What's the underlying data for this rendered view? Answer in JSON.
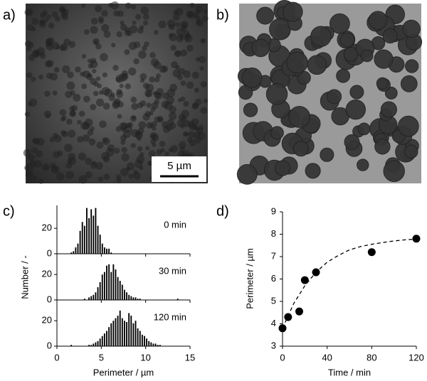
{
  "panel_labels": [
    "a)",
    "b)",
    "c)",
    "d)"
  ],
  "scale_bar": "5 µm",
  "chart_data": [
    {
      "type": "histogram",
      "annotation": "0 min",
      "color": "#000000",
      "bins": [
        1,
        1.25,
        1.5,
        1.75,
        2,
        2.25,
        2.5,
        2.75,
        3,
        3.25,
        3.5,
        3.75,
        4,
        4.25,
        4.5,
        4.75,
        5,
        5.25,
        5.5,
        5.75,
        6,
        6.25,
        6.5,
        6.75,
        7,
        7.25,
        7.5,
        7.75,
        8,
        8.25,
        8.5,
        8.75,
        9,
        9.25,
        9.5,
        9.75,
        10,
        10.25,
        10.5,
        10.75,
        11,
        11.25,
        11.5,
        11.75,
        12,
        12.25,
        12.5,
        12.75,
        13,
        13.25,
        13.5,
        13.75,
        14
      ],
      "values": [
        0,
        0,
        1,
        2,
        5,
        8,
        18,
        25,
        22,
        36,
        28,
        35,
        30,
        36,
        22,
        15,
        8,
        5,
        4,
        4,
        1,
        0,
        0,
        0,
        0,
        0,
        0,
        0,
        0,
        0,
        0,
        0,
        0,
        0,
        0,
        0,
        0,
        0,
        0,
        0,
        0,
        0,
        0,
        0,
        0,
        0,
        0,
        0,
        0,
        0,
        0,
        0
      ],
      "xlim": [
        0,
        15
      ],
      "ylim": [
        0,
        38
      ],
      "yticks": [
        0,
        20
      ]
    },
    {
      "type": "histogram",
      "annotation": "30 min",
      "color": "#000000",
      "ylabel": "Number / -",
      "bins": [
        1,
        1.25,
        1.5,
        1.75,
        2,
        2.25,
        2.5,
        2.75,
        3,
        3.25,
        3.5,
        3.75,
        4,
        4.25,
        4.5,
        4.75,
        5,
        5.25,
        5.5,
        5.75,
        6,
        6.25,
        6.5,
        6.75,
        7,
        7.25,
        7.5,
        7.75,
        8,
        8.25,
        8.5,
        8.75,
        9,
        9.25,
        9.5,
        9.75,
        10,
        10.25,
        10.5,
        10.75,
        11,
        11.25,
        11.5,
        11.75,
        12,
        12.25,
        12.5,
        12.75,
        13,
        13.25,
        13.5,
        13.75,
        14
      ],
      "values": [
        0,
        0,
        0,
        0,
        0,
        0,
        0,
        0,
        1,
        0,
        2,
        3,
        4,
        6,
        10,
        14,
        20,
        22,
        27,
        28,
        22,
        28,
        24,
        18,
        15,
        12,
        8,
        6,
        4,
        3,
        2,
        2,
        1,
        1,
        0,
        0,
        0,
        0,
        0,
        0,
        0,
        0,
        0,
        0,
        0,
        0,
        0,
        0,
        0,
        0,
        1,
        0
      ],
      "xlim": [
        0,
        15
      ],
      "ylim": [
        0,
        38
      ],
      "yticks": [
        0,
        20
      ]
    },
    {
      "type": "histogram",
      "annotation": "120 min",
      "color": "#000000",
      "xlabel": "Perimeter / µm",
      "bins": [
        1,
        1.25,
        1.5,
        1.75,
        2,
        2.25,
        2.5,
        2.75,
        3,
        3.25,
        3.5,
        3.75,
        4,
        4.25,
        4.5,
        4.75,
        5,
        5.25,
        5.5,
        5.75,
        6,
        6.25,
        6.5,
        6.75,
        7,
        7.25,
        7.5,
        7.75,
        8,
        8.25,
        8.5,
        8.75,
        9,
        9.25,
        9.5,
        9.75,
        10,
        10.25,
        10.5,
        10.75,
        11,
        11.25,
        11.5,
        11.75,
        12,
        12.25,
        12.5,
        12.75,
        13,
        13.25,
        13.5,
        13.75,
        14
      ],
      "values": [
        0,
        0,
        1,
        0,
        0,
        0,
        0,
        0,
        0,
        0,
        1,
        1,
        2,
        3,
        4,
        6,
        8,
        10,
        12,
        15,
        18,
        20,
        22,
        24,
        28,
        22,
        20,
        19,
        26,
        24,
        18,
        20,
        14,
        12,
        9,
        8,
        6,
        4,
        3,
        2,
        2,
        1,
        1,
        0,
        0,
        0,
        0,
        0,
        0,
        0,
        0,
        0
      ],
      "xlim": [
        0,
        15
      ],
      "xticks": [
        0,
        5,
        10,
        15
      ],
      "ylim": [
        0,
        38
      ],
      "yticks": [
        0,
        20
      ]
    },
    {
      "type": "scatter",
      "xlabel": "Time / min",
      "ylabel": "Perimeter / µm",
      "color": "#000000",
      "x": [
        0,
        5,
        15,
        20,
        30,
        80,
        120
      ],
      "y": [
        3.8,
        4.3,
        4.55,
        5.95,
        6.3,
        7.2,
        7.8
      ],
      "fit": {
        "x": [
          0,
          10,
          20,
          30,
          40,
          50,
          60,
          70,
          80,
          90,
          100,
          110,
          120
        ],
        "y": [
          3.8,
          4.9,
          5.7,
          6.3,
          6.75,
          7.05,
          7.3,
          7.45,
          7.55,
          7.63,
          7.7,
          7.75,
          7.78
        ]
      },
      "xlim": [
        0,
        120
      ],
      "xticks": [
        0,
        40,
        80,
        120
      ],
      "ylim": [
        3,
        9
      ],
      "yticks": [
        3,
        4,
        5,
        6,
        7,
        8,
        9
      ]
    }
  ]
}
